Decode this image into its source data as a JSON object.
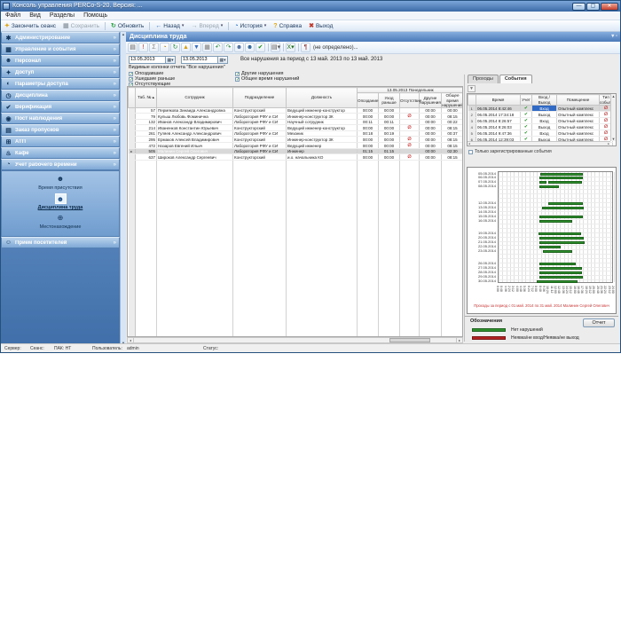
{
  "title_bar": {
    "title": "Консоль управления PERCo-S-20. Версия: ..."
  },
  "menu_bar": {
    "items": [
      "Файл",
      "Вид",
      "Разделы",
      "Помощь"
    ]
  },
  "main_toolbar": {
    "items": [
      {
        "id": "end-session",
        "label": "Закончить сеанс",
        "icon": "key-icon",
        "glyph": "✦",
        "color": "#e0a818",
        "disabled": false,
        "dropdown": false
      },
      {
        "id": "save",
        "label": "Сохранить",
        "icon": "save-icon",
        "glyph": "▦",
        "color": "#9aa4ae",
        "disabled": true,
        "dropdown": false
      },
      {
        "id": "refresh",
        "label": "Обновить",
        "icon": "refresh-icon",
        "glyph": "↻",
        "color": "#2e9e46",
        "disabled": false,
        "dropdown": false
      },
      {
        "id": "back",
        "label": "Назад",
        "icon": "back-arrow-icon",
        "glyph": "←",
        "color": "#2e6fc0",
        "disabled": false,
        "dropdown": true
      },
      {
        "id": "forward",
        "label": "Вперед",
        "icon": "forward-arrow-icon",
        "glyph": "→",
        "color": "#9aa4ae",
        "disabled": true,
        "dropdown": true
      },
      {
        "id": "history",
        "label": "История",
        "icon": "history-clock-icon",
        "glyph": "◔",
        "color": "#2e6fc0",
        "disabled": false,
        "dropdown": true
      },
      {
        "id": "help",
        "label": "Справка",
        "icon": "help-icon",
        "glyph": "?",
        "color": "#e0a818",
        "disabled": false,
        "dropdown": false
      },
      {
        "id": "exit",
        "label": "Выход",
        "icon": "exit-icon",
        "glyph": "✖",
        "color": "#c0392b",
        "disabled": false,
        "dropdown": false
      }
    ]
  },
  "sidebar": {
    "groups": [
      {
        "id": "administration",
        "label": "Администрирование",
        "icon": "gear-icon",
        "glyph": "✱",
        "expanded": false
      },
      {
        "id": "management-events",
        "label": "Управление и события",
        "icon": "monitor-icon",
        "glyph": "▦",
        "expanded": false
      },
      {
        "id": "personnel",
        "label": "Персонал",
        "icon": "person-icon",
        "glyph": "☻",
        "expanded": false
      },
      {
        "id": "access",
        "label": "Доступ",
        "icon": "key-icon",
        "glyph": "✦",
        "expanded": false
      },
      {
        "id": "access-params",
        "label": "Параметры доступа",
        "icon": "globe-person-icon",
        "glyph": "◐",
        "expanded": false
      },
      {
        "id": "discipline",
        "label": "Дисциплина",
        "icon": "clock-person-icon",
        "glyph": "◷",
        "expanded": false
      },
      {
        "id": "verification",
        "label": "Верификация",
        "icon": "verify-person-icon",
        "glyph": "✔",
        "expanded": false
      },
      {
        "id": "observation-post",
        "label": "Пост наблюдения",
        "icon": "camera-icon",
        "glyph": "◉",
        "expanded": false
      },
      {
        "id": "pass-orders",
        "label": "Заказ пропусков",
        "icon": "pass-card-icon",
        "glyph": "▤",
        "expanded": false
      },
      {
        "id": "atp",
        "label": "АТП",
        "icon": "truck-icon",
        "glyph": "⊞",
        "expanded": false
      },
      {
        "id": "cafe",
        "label": "Кафе",
        "icon": "coffee-icon",
        "glyph": "♨",
        "expanded": false
      },
      {
        "id": "work-time",
        "label": "Учет рабочего времени",
        "icon": "worktime-clock-icon",
        "glyph": "◔",
        "expanded": true
      },
      {
        "id": "visitors",
        "label": "Прием посетителей",
        "icon": "visitors-icon",
        "glyph": "☺",
        "expanded": false
      }
    ],
    "subitems": [
      {
        "id": "presence-time",
        "label": "Время присутствия",
        "icon": "presence-icon",
        "glyph": "☻",
        "selected": false
      },
      {
        "id": "labor-discipline",
        "label": "Дисциплина труда",
        "icon": "discipline-icon",
        "glyph": "☻",
        "selected": true
      },
      {
        "id": "location",
        "label": "Местонахождение",
        "icon": "location-icon",
        "glyph": "⊕",
        "selected": false
      }
    ]
  },
  "content": {
    "tab_title": "Дисциплина труда",
    "icon_toolbar": {
      "icons": [
        {
          "name": "print-icon",
          "glyph": "▤",
          "color": "#555"
        },
        {
          "name": "priority-icon",
          "glyph": "!",
          "color": "#c02020"
        },
        {
          "name": "sum-icon",
          "glyph": "Σ",
          "color": "#888"
        },
        {
          "name": "clock-icon",
          "glyph": "◔",
          "color": "#b8860b"
        },
        {
          "name": "refresh-icon",
          "glyph": "↻",
          "color": "#2a8a46"
        },
        {
          "name": "warning-icon",
          "glyph": "▲",
          "color": "#d4a017"
        },
        {
          "name": "sort-icon",
          "glyph": "▼",
          "color": "#3a6fc0"
        },
        {
          "name": "calendar-icon",
          "glyph": "▦",
          "color": "#777"
        },
        {
          "name": "undo-icon",
          "glyph": "↶",
          "color": "#2a8a46"
        },
        {
          "name": "redo-icon",
          "glyph": "↷",
          "color": "#2a8a46"
        },
        {
          "name": "employee-card-icon",
          "glyph": "☻",
          "color": "#44679a"
        },
        {
          "name": "walking-man-icon",
          "glyph": "☻",
          "color": "#245c94"
        },
        {
          "name": "apply-check-icon",
          "glyph": "✔",
          "color": "#1a8f1a"
        },
        {
          "name": "print-report-icon",
          "glyph": "▤▾",
          "color": "#555"
        },
        {
          "name": "excel-export-icon",
          "glyph": "X▾",
          "color": "#1a6e1a"
        },
        {
          "name": "attachment-icon",
          "glyph": "¶",
          "color": "#833"
        }
      ],
      "schedule_label": "(не определено)..."
    },
    "period": {
      "date_from": "13.05.2013",
      "date_to": "13.05.2013",
      "summary": "Все нарушения за период с 13 май. 2013 по 13 май. 2013"
    },
    "columns_filter": {
      "title": "Видимые колонки отчета \"Все нарушения\"",
      "col1": [
        {
          "label": "Опоздавшие",
          "checked": true
        },
        {
          "label": "Ушедшие раньше",
          "checked": true
        },
        {
          "label": "Отсутствующие",
          "checked": true
        }
      ],
      "col2": [
        {
          "label": "Другие нарушения",
          "checked": true
        },
        {
          "label": "Общее время нарушений",
          "checked": true
        }
      ]
    },
    "table": {
      "headers": [
        "Таб. № ▴",
        "Сотрудник",
        "Подразделение",
        "Должность"
      ],
      "group_header": "13.05.2013 Понедельник",
      "sub_headers": [
        "Опоздание",
        "Уход раньше",
        "Отсутствие",
        "Другие нарушения",
        "Общее время нарушений"
      ],
      "rows": [
        {
          "id": "57",
          "name": "Пермякова Зинаида Александровна",
          "dept": "Конструкторский",
          "pos": "Ведущий инженер-конструктор",
          "late": "00:00",
          "early": "00:00",
          "absent": false,
          "other": "00:00",
          "total": "00:00",
          "selected": false
        },
        {
          "id": "79",
          "name": "Кулыш Любовь Фоминична",
          "dept": "Лаборатория РФУ и СИ",
          "pos": "Инженер-конструктор 3К",
          "late": "00:00",
          "early": "00:00",
          "absent": true,
          "other": "00:00",
          "total": "08:15",
          "selected": false
        },
        {
          "id": "132",
          "name": "Иванов Александр Владимирович",
          "dept": "Лаборатория РФУ и СИ",
          "pos": "Научный сотрудник",
          "late": "00:11",
          "early": "00:11",
          "absent": false,
          "other": "00:00",
          "total": "00:22",
          "selected": false
        },
        {
          "id": "214",
          "name": "Иваненков Константин Юрьевич",
          "dept": "Конструкторский",
          "pos": "Ведущий инженер-конструктор",
          "late": "00:00",
          "early": "00:00",
          "absent": true,
          "other": "00:00",
          "total": "08:15",
          "selected": false
        },
        {
          "id": "261",
          "name": "Гуляев Александр Александрович",
          "dept": "Лаборатория РФУ и СИ",
          "pos": "Механик",
          "late": "00:18",
          "early": "00:19",
          "absent": false,
          "other": "00:00",
          "total": "00:37",
          "selected": false
        },
        {
          "id": "295",
          "name": "Ермаков Алексей Владимирович",
          "dept": "Конструкторский",
          "pos": "Инженер-конструктор 3К",
          "late": "00:00",
          "early": "00:00",
          "absent": true,
          "other": "00:00",
          "total": "08:15",
          "selected": false
        },
        {
          "id": "472",
          "name": "Назаров Евгений Ильич",
          "dept": "Лаборатория РФУ и СИ",
          "pos": "Ведущий инженер",
          "late": "00:00",
          "early": "00:00",
          "absent": true,
          "other": "00:00",
          "total": "08:15",
          "selected": false
        },
        {
          "id": "505",
          "name": "Малинин Сергей Олегович",
          "dept": "Лаборатория РФУ и СИ",
          "pos": "Инженер",
          "late": "01:15",
          "early": "01:15",
          "absent": false,
          "other": "00:00",
          "total": "02:30",
          "selected": true
        },
        {
          "id": "637",
          "name": "Широков Александр Сергеевич",
          "dept": "Конструкторский",
          "pos": "и.о. начальника КО",
          "late": "00:00",
          "early": "00:00",
          "absent": true,
          "other": "00:00",
          "total": "08:15",
          "selected": false
        }
      ]
    }
  },
  "events_panel": {
    "tabs": [
      {
        "label": "Проходы",
        "active": false
      },
      {
        "label": "События",
        "active": true
      }
    ],
    "table": {
      "headers": [
        "",
        "Время",
        "Учет",
        "Вход / Выход",
        "Помещение",
        "Тип события"
      ],
      "rows": [
        {
          "n": "1",
          "time": "06.05.2014 8:42:46",
          "reg": true,
          "dir": "Вход",
          "room": "Опытный комплекс",
          "selected": true
        },
        {
          "n": "2",
          "time": "06.05.2014 17:34:18",
          "reg": true,
          "dir": "Выход",
          "room": "Опытный комплекс",
          "selected": false
        },
        {
          "n": "3",
          "time": "06.05.2014 8:26:57",
          "reg": true,
          "dir": "Вход",
          "room": "Опытный комплекс",
          "selected": false
        },
        {
          "n": "4",
          "time": "06.05.2014 9:26:03",
          "reg": true,
          "dir": "Выход",
          "room": "Опытный комплекс",
          "selected": false
        },
        {
          "n": "5",
          "time": "06.05.2014 9:47:36",
          "reg": true,
          "dir": "Вход",
          "room": "Опытный комплекс",
          "selected": false
        },
        {
          "n": "6",
          "time": "06.05.2014 12:39:03",
          "reg": true,
          "dir": "Выход",
          "room": "Опытный комплекс",
          "selected": false
        },
        {
          "n": "7",
          "time": "06.05.2014 13:04:18",
          "reg": true,
          "dir": "Вход",
          "room": "Опытный комплекс",
          "selected": false
        }
      ]
    },
    "filter_checkbox": "Только зарегистрированные события"
  },
  "chart_data": {
    "type": "gantt",
    "title": "",
    "caption": "Проходы за период с 01 май. 2014 по 31 май. 2014  Малинин Сергей Олегович",
    "x_range_hours": [
      0,
      24
    ],
    "x_ticks": [
      "0:00",
      "0:48",
      "1:36",
      "2:24",
      "3:12",
      "4:00",
      "4:48",
      "5:36",
      "6:24",
      "7:12",
      "8:00",
      "8:48",
      "9:36",
      "10:24",
      "11:12",
      "12:00",
      "12:48",
      "13:36",
      "14:24",
      "15:12",
      "16:00",
      "16:48",
      "17:36",
      "18:24",
      "19:12",
      "20:00",
      "20:48",
      "21:36",
      "22:24",
      "23:12",
      "24:00"
    ],
    "total_day_slots": 26,
    "bar_color": "#2f8f2f",
    "rows": [
      {
        "date": "05.05.2014",
        "index": 0,
        "bars": [
          [
            8.7,
            17.5
          ]
        ]
      },
      {
        "date": "06.05.2014",
        "index": 1,
        "bars": [
          [
            8.4,
            17.6
          ]
        ]
      },
      {
        "date": "07.05.2014",
        "index": 2,
        "bars": [
          [
            8.5,
            10.0
          ],
          [
            10.3,
            17.4
          ]
        ]
      },
      {
        "date": "08.05.2014",
        "index": 3,
        "bars": [
          [
            8.5,
            12.6
          ]
        ]
      },
      {
        "date": "12.05.2014",
        "index": 7,
        "bars": [
          [
            10.4,
            17.5
          ]
        ]
      },
      {
        "date": "13.05.2014",
        "index": 8,
        "bars": [
          [
            9.0,
            17.8
          ]
        ]
      },
      {
        "date": "14.05.2014",
        "index": 9,
        "bars": []
      },
      {
        "date": "15.05.2014",
        "index": 10,
        "bars": [
          [
            8.5,
            17.5
          ]
        ]
      },
      {
        "date": "16.05.2014",
        "index": 11,
        "bars": [
          [
            8.5,
            15.4
          ]
        ]
      },
      {
        "date": "19.05.2014",
        "index": 14,
        "bars": [
          [
            8.3,
            17.1
          ]
        ]
      },
      {
        "date": "20.05.2014",
        "index": 15,
        "bars": [
          [
            8.5,
            17.7
          ]
        ]
      },
      {
        "date": "21.05.2014",
        "index": 16,
        "bars": [
          [
            8.4,
            17.9
          ]
        ]
      },
      {
        "date": "22.05.2014",
        "index": 17,
        "bars": [
          [
            8.5,
            13.0
          ]
        ]
      },
      {
        "date": "23.05.2014",
        "index": 18,
        "bars": [
          [
            9.3,
            15.3
          ]
        ]
      },
      {
        "date": "26.05.2014",
        "index": 21,
        "bars": [
          [
            8.5,
            16.0
          ]
        ]
      },
      {
        "date": "27.05.2014",
        "index": 22,
        "bars": [
          [
            8.4,
            17.3
          ]
        ]
      },
      {
        "date": "28.05.2014",
        "index": 23,
        "bars": [
          [
            8.5,
            17.3
          ]
        ]
      },
      {
        "date": "29.05.2014",
        "index": 24,
        "bars": [
          [
            8.4,
            17.5
          ]
        ]
      },
      {
        "date": "30.05.2014",
        "index": 25,
        "bars": [
          [
            8.0,
            16.4
          ]
        ]
      }
    ]
  },
  "legend": {
    "title": "Обозначения",
    "items": [
      {
        "color": "#2f8f2f",
        "label": "Нет нарушений"
      },
      {
        "color": "#b22222",
        "label": "Неявка/не вход/Неявка/не выход"
      }
    ],
    "report_button": "Отчет"
  },
  "statusbar": {
    "items": [
      {
        "label": "Сервер:",
        "x": 4
      },
      {
        "label": "Сеанс:",
        "x": 33
      },
      {
        "label": "ПАК: НТ",
        "x": 60
      },
      {
        "label": "Пользователь:",
        "x": 103
      },
      {
        "label": "admin",
        "x": 142
      },
      {
        "label": "Статус:",
        "x": 228
      }
    ]
  }
}
